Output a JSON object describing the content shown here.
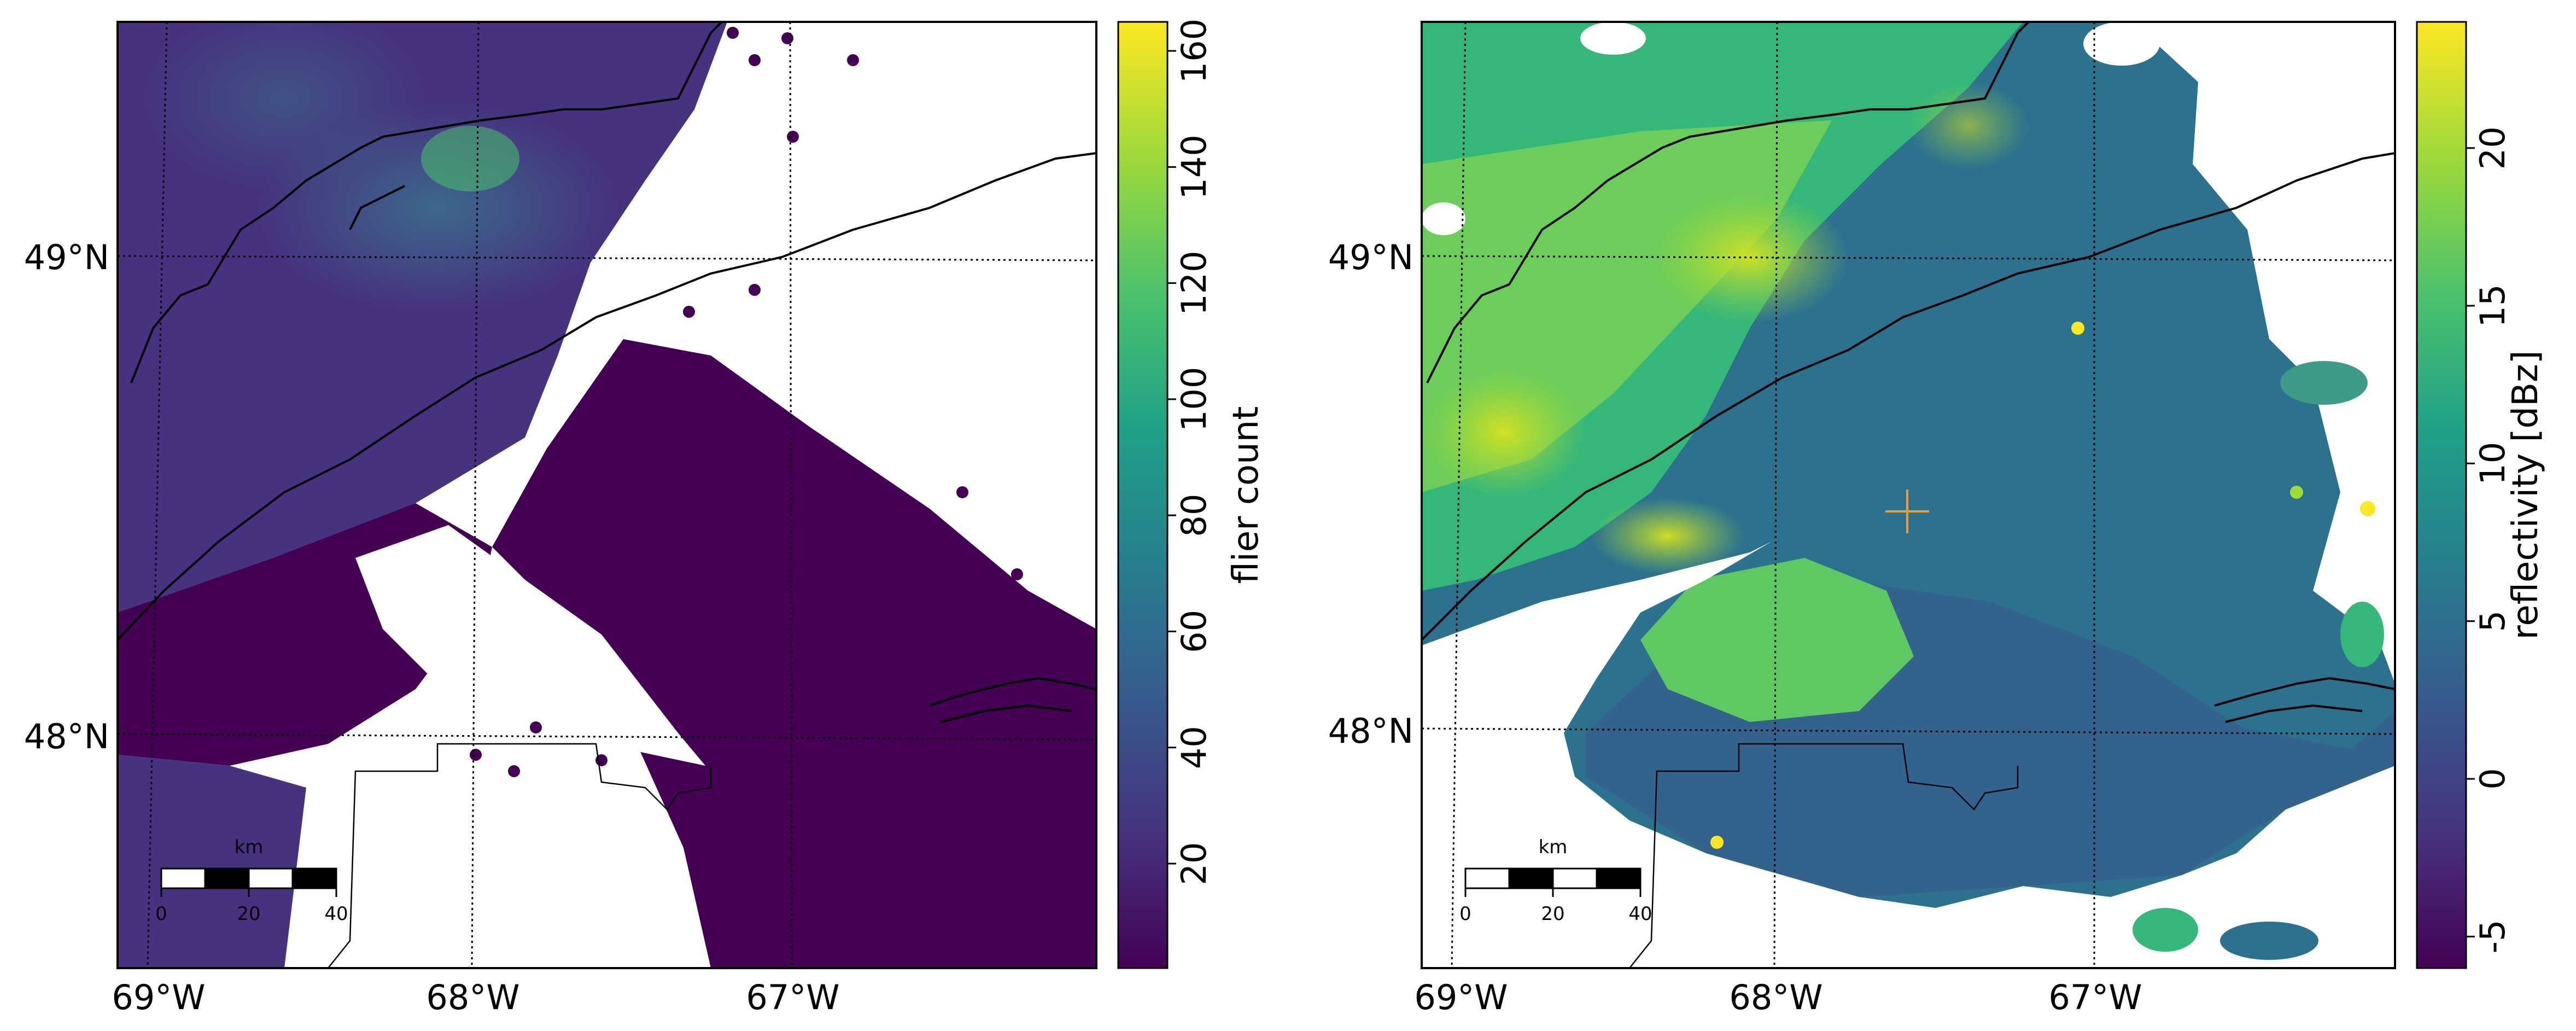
{
  "map_panels": [
    {
      "id": "left",
      "colorbar_label": "flier count",
      "colorbar_ticks": [
        "20",
        "40",
        "60",
        "80",
        "100",
        "120",
        "140",
        "160"
      ],
      "colorbar_range": [
        2,
        165
      ],
      "lat_labels": [
        "49°N",
        "48°N"
      ],
      "lon_labels": [
        "69°W",
        "68°W",
        "67°W"
      ],
      "scalebar": {
        "unit": "km",
        "ticks": [
          "0",
          "20",
          "40"
        ]
      }
    },
    {
      "id": "right",
      "colorbar_label": "reflectivity [dBz]",
      "colorbar_ticks": [
        "-5",
        "0",
        "5",
        "10",
        "15",
        "20"
      ],
      "colorbar_range": [
        -6,
        24
      ],
      "lat_labels": [
        "49°N",
        "48°N"
      ],
      "lon_labels": [
        "69°W",
        "68°W",
        "67°W"
      ],
      "scalebar": {
        "unit": "km",
        "ticks": [
          "0",
          "20",
          "40"
        ]
      },
      "radar_marker": "cross"
    }
  ],
  "colors": {
    "viridis_dark": "#440154",
    "viridis_mid": "#21918c",
    "viridis_light": "#fde725",
    "radar_marker": "#f0a030"
  }
}
